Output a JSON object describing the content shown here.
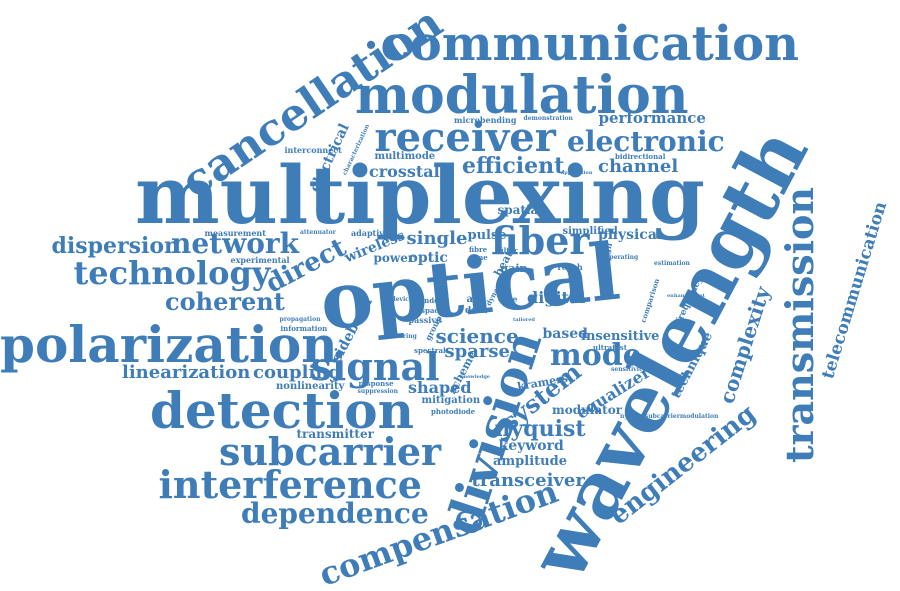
{
  "text_color": "#3f7db8",
  "words": [
    {
      "id": "communication",
      "text": "communication"
    },
    {
      "id": "modulation",
      "text": "modulation"
    },
    {
      "id": "cancellation",
      "text": "cancellation"
    },
    {
      "id": "receiver",
      "text": "receiver"
    },
    {
      "id": "electronic",
      "text": "electronic"
    },
    {
      "id": "performance",
      "text": "performance"
    },
    {
      "id": "microbending",
      "text": "microbending"
    },
    {
      "id": "demonstration",
      "text": "demonstration"
    },
    {
      "id": "interconnect",
      "text": "interconnect"
    },
    {
      "id": "electrical",
      "text": "electrical"
    },
    {
      "id": "characterization",
      "text": "characterization"
    },
    {
      "id": "multimode",
      "text": "multimode"
    },
    {
      "id": "efficient",
      "text": "efficient"
    },
    {
      "id": "channel",
      "text": "channel"
    },
    {
      "id": "bidirectional",
      "text": "bidirectional"
    },
    {
      "id": "crosstalk",
      "text": "crosstalk"
    },
    {
      "id": "multiplexing",
      "text": "multiplexing"
    },
    {
      "id": "wavelength",
      "text": "wavelength"
    },
    {
      "id": "transmission",
      "text": "transmission"
    },
    {
      "id": "telecommunication",
      "text": "telecommunication"
    },
    {
      "id": "dispersion",
      "text": "dispersion"
    },
    {
      "id": "network",
      "text": "network"
    },
    {
      "id": "measurement",
      "text": "measurement"
    },
    {
      "id": "attenuator",
      "text": "attenuator"
    },
    {
      "id": "adaptive",
      "text": "adaptive"
    },
    {
      "id": "experimental",
      "text": "experimental"
    },
    {
      "id": "wireless",
      "text": "wireless"
    },
    {
      "id": "single",
      "text": "single"
    },
    {
      "id": "pulse",
      "text": "pulse"
    },
    {
      "id": "fiber",
      "text": "fiber"
    },
    {
      "id": "simplified",
      "text": "simplified"
    },
    {
      "id": "physical",
      "text": "physical"
    },
    {
      "id": "spatial",
      "text": "spatial"
    },
    {
      "id": "technology",
      "text": "technology"
    },
    {
      "id": "direct",
      "text": "direct"
    },
    {
      "id": "power",
      "text": "power"
    },
    {
      "id": "optic",
      "text": "optic"
    },
    {
      "id": "time",
      "text": "time"
    },
    {
      "id": "gain",
      "text": "gain"
    },
    {
      "id": "fibre",
      "text": "fibre"
    },
    {
      "id": "reach",
      "text": "reach"
    },
    {
      "id": "optical",
      "text": "optical"
    },
    {
      "id": "coherent",
      "text": "coherent"
    },
    {
      "id": "index",
      "text": "index"
    },
    {
      "id": "space",
      "text": "space"
    },
    {
      "id": "core",
      "text": "core"
    },
    {
      "id": "acc",
      "text": "acc"
    },
    {
      "id": "data",
      "text": "data"
    },
    {
      "id": "digital",
      "text": "digital"
    },
    {
      "id": "polarization",
      "text": "polarization"
    },
    {
      "id": "information",
      "text": "information"
    },
    {
      "id": "propagation",
      "text": "propagation"
    },
    {
      "id": "sideband",
      "text": "sideband"
    },
    {
      "id": "passive",
      "text": "passive"
    },
    {
      "id": "science",
      "text": "science"
    },
    {
      "id": "sparse",
      "text": "sparse"
    },
    {
      "id": "based",
      "text": "based"
    },
    {
      "id": "insensitive",
      "text": "insensitive"
    },
    {
      "id": "ultrafast",
      "text": "ultrafast"
    },
    {
      "id": "mode",
      "text": "mode"
    },
    {
      "id": "division",
      "text": "division"
    },
    {
      "id": "complexity",
      "text": "complexity"
    },
    {
      "id": "frequency",
      "text": "frequency"
    },
    {
      "id": "comparison",
      "text": "comparison"
    },
    {
      "id": "linearization",
      "text": "linearization"
    },
    {
      "id": "coupling",
      "text": "coupling"
    },
    {
      "id": "signal",
      "text": "signal"
    },
    {
      "id": "nonlinearity",
      "text": "nonlinearity"
    },
    {
      "id": "response",
      "text": "response"
    },
    {
      "id": "suppression",
      "text": "suppression"
    },
    {
      "id": "shaped",
      "text": "shaped"
    },
    {
      "id": "scheme",
      "text": "scheme"
    },
    {
      "id": "kramers",
      "text": "kramers"
    },
    {
      "id": "system",
      "text": "system"
    },
    {
      "id": "equalizer",
      "text": "equalizer"
    },
    {
      "id": "technique",
      "text": "technique"
    },
    {
      "id": "detection",
      "text": "detection"
    },
    {
      "id": "mitigation",
      "text": "mitigation"
    },
    {
      "id": "photodiode",
      "text": "photodiode"
    },
    {
      "id": "modulator",
      "text": "modulator"
    },
    {
      "id": "nyquist",
      "text": "nyquist"
    },
    {
      "id": "nyquistsubcarriermodulation",
      "text": "nyquistsubcarriermodulation"
    },
    {
      "id": "transmitter",
      "text": "transmitter"
    },
    {
      "id": "subcarrier",
      "text": "subcarrier"
    },
    {
      "id": "keyword",
      "text": "keyword"
    },
    {
      "id": "amplitude",
      "text": "amplitude"
    },
    {
      "id": "engineering",
      "text": "engineering"
    },
    {
      "id": "interference",
      "text": "interference"
    },
    {
      "id": "transceiver",
      "text": "transceiver"
    },
    {
      "id": "dependence",
      "text": "dependence"
    },
    {
      "id": "compensation",
      "text": "compensation"
    },
    {
      "id": "estimation",
      "text": "estimation"
    },
    {
      "id": "enhancement",
      "text": "enhancement"
    },
    {
      "id": "sensitivity",
      "text": "sensitivity"
    },
    {
      "id": "operating",
      "text": "operating"
    },
    {
      "id": "design",
      "text": "design"
    },
    {
      "id": "filter",
      "text": "filter"
    },
    {
      "id": "dynamic",
      "text": "dynamic"
    },
    {
      "id": "knowledge",
      "text": "knowledge"
    },
    {
      "id": "spectral",
      "text": "spectral"
    },
    {
      "id": "beat",
      "text": "beat"
    },
    {
      "id": "group",
      "text": "group"
    },
    {
      "id": "device",
      "text": "device"
    },
    {
      "id": "steering",
      "text": "steering"
    },
    {
      "id": "tailored",
      "text": "tailored"
    },
    {
      "id": "application",
      "text": "application"
    }
  ]
}
